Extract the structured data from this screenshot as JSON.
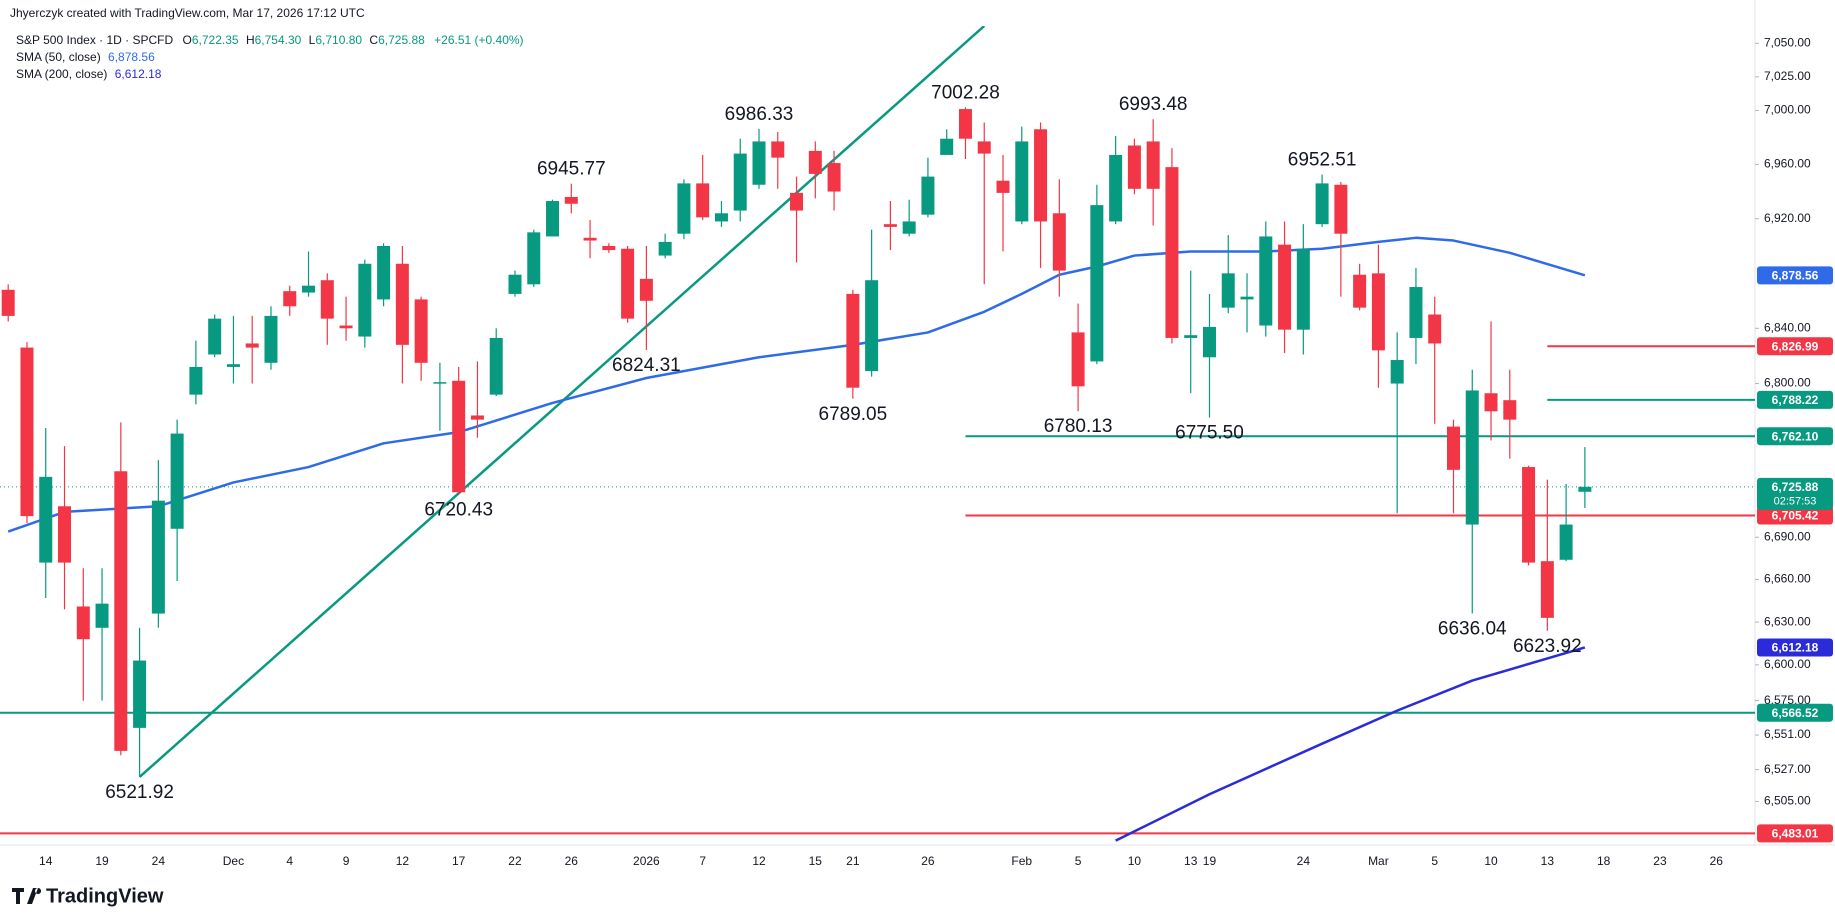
{
  "chart_data": {
    "type": "candlestick",
    "header": "Jhyerczyk created with TradingView.com, Mar 17, 2026 17:12 UTC",
    "legend": {
      "symbol": "S&P 500 Index · 1D · SPCFD",
      "items": [
        {
          "key": "O",
          "value": "6,722.35"
        },
        {
          "key": "H",
          "value": "6,754.30"
        },
        {
          "key": "L",
          "value": "6,710.80"
        },
        {
          "key": "C",
          "value": "6,725.88"
        }
      ],
      "change": "+26.51 (+0.40%)"
    },
    "logo": "TradingView",
    "categories": [
      null,
      null,
      "14",
      null,
      null,
      "19",
      null,
      null,
      "24",
      null,
      null,
      null,
      "Dec",
      null,
      null,
      "4",
      null,
      null,
      "9",
      null,
      null,
      "12",
      null,
      null,
      "17",
      null,
      null,
      "22",
      null,
      null,
      "26",
      null,
      null,
      null,
      "2026",
      null,
      null,
      "7",
      null,
      null,
      "12",
      null,
      null,
      "15",
      null,
      "21",
      null,
      null,
      null,
      "26",
      null,
      null,
      null,
      null,
      "Feb",
      null,
      null,
      "5",
      null,
      null,
      "10",
      null,
      null,
      "13",
      "19",
      null,
      null,
      null,
      null,
      "24",
      null,
      null,
      null,
      "Mar",
      null,
      null,
      "5",
      null,
      null,
      "10",
      null,
      null,
      "13",
      null,
      null,
      "18",
      null,
      null,
      "23",
      null,
      null,
      "26"
    ],
    "open": [
      6868,
      6826,
      6672,
      6712,
      6641,
      6626,
      6737,
      6556,
      6636,
      6696,
      6792,
      6821,
      6812,
      6829,
      6815,
      6867,
      6866,
      6875,
      6842,
      6834,
      6861,
      6887,
      6861,
      6800,
      6802,
      6777,
      6792,
      6865,
      6872,
      6907,
      6936,
      6906,
      6900,
      6898,
      6876,
      6893,
      6909,
      6946,
      6918,
      6926,
      6945,
      6977,
      6939,
      6970,
      6961,
      6865,
      6809,
      6916,
      6909,
      6923,
      6967,
      7001,
      6977,
      6948,
      6918,
      6986,
      6924,
      6837,
      6816,
      6918,
      6974,
      6977,
      6958,
      6833,
      6819,
      6855,
      6861,
      6842,
      6901,
      6839,
      6916,
      6945,
      6879,
      6880,
      6800,
      6833,
      6850,
      6769,
      6699,
      6793,
      6788,
      6740,
      6673,
      6674,
      6722.35,
      null,
      null,
      null,
      null,
      null,
      null,
      null
    ],
    "high": [
      6872,
      6830,
      6768,
      6755,
      6668,
      6668,
      6772,
      6626,
      6745,
      6774,
      6831,
      6850,
      6849,
      6849,
      6856,
      6871,
      6896,
      6880,
      6863,
      6890,
      6902,
      6900,
      6863,
      6815,
      6812,
      6816,
      6840,
      6882,
      6912,
      6934,
      6945.77,
      6919,
      6902,
      6900,
      6900,
      6909,
      6949,
      6967,
      6933,
      6979,
      6986.33,
      6984,
      6951,
      6977,
      6970,
      6868,
      6912,
      6933,
      6934,
      6965,
      6986,
      7002.28,
      6991,
      6967,
      6988,
      6991,
      6949,
      6858,
      6945,
      6981,
      6979,
      6993.48,
      6972,
      6882,
      6865,
      6908,
      6880,
      6918,
      6918,
      6916,
      6952.51,
      6947,
      6887,
      6901,
      6837,
      6884,
      6863,
      6774,
      6810,
      6845,
      6810,
      6741,
      6731,
      6728,
      6754.3,
      null,
      null,
      null,
      null,
      null,
      null,
      null
    ],
    "low": [
      6845,
      6700,
      6647,
      6639,
      6575,
      6575,
      6537,
      6521.92,
      6626,
      6659,
      6785,
      6819,
      6800,
      6800,
      6810,
      6849,
      6863,
      6828,
      6831,
      6826,
      6856,
      6800,
      6802,
      6766,
      6720.43,
      6761,
      6791,
      6863,
      6870,
      6907,
      6924,
      6891,
      6895,
      6844,
      6824.31,
      6891,
      6905,
      6919,
      6914,
      6918,
      6942,
      6942,
      6888,
      6935,
      6926,
      6789.05,
      6805,
      6897,
      6907,
      6921,
      6967,
      6964,
      6872,
      6896,
      6916,
      6884,
      6863,
      6780.13,
      6814,
      6916,
      6938,
      6915,
      6829,
      6793,
      6775.5,
      6851,
      6837,
      6834,
      6822,
      6821,
      6914,
      6863,
      6853,
      6797,
      6707,
      6814,
      6771,
      6707,
      6636.04,
      6759,
      6746,
      6670,
      6623.92,
      6673,
      6710.8,
      null,
      null,
      null,
      null,
      null,
      null,
      null
    ],
    "close": [
      6849,
      6705,
      6733,
      6672,
      6618,
      6643,
      6540,
      6603,
      6716,
      6764,
      6812,
      6847,
      6814,
      6826,
      6849,
      6856,
      6871,
      6847,
      6840,
      6887,
      6900,
      6828,
      6815,
      6801,
      6722,
      6774,
      6833,
      6879,
      6910,
      6933,
      6931,
      6904,
      6897,
      6847,
      6860,
      6903,
      6946,
      6921,
      6924,
      6968,
      6977,
      6965,
      6926,
      6953,
      6940,
      6797,
      6875,
      6914,
      6918,
      6951,
      6979,
      6979,
      6968,
      6939,
      6977,
      6918,
      6882,
      6798,
      6930,
      6967,
      6942,
      6942,
      6833,
      6835,
      6841,
      6880,
      6863,
      6907,
      6839,
      6898,
      6946,
      6909,
      6855,
      6824,
      6817,
      6870,
      6829,
      6738,
      6795,
      6780,
      6774,
      6672,
      6633,
      6699,
      6725.88,
      null,
      null,
      null,
      null,
      null,
      null,
      null
    ],
    "up_color": "#089981",
    "down_color": "#f23645",
    "log_scale": true,
    "grid": false,
    "ylim": [
      6475,
      7063
    ],
    "yticks": [
      {
        "value": 6505,
        "label": "6,505.00"
      },
      {
        "value": 6527,
        "label": "6,527.00"
      },
      {
        "value": 6551,
        "label": "6,551.00"
      },
      {
        "value": 6575,
        "label": "6,575.00"
      },
      {
        "value": 6600,
        "label": "6,600.00"
      },
      {
        "value": 6630,
        "label": "6,630.00"
      },
      {
        "value": 6660,
        "label": "6,660.00"
      },
      {
        "value": 6690,
        "label": "6,690.00"
      },
      {
        "value": 6800,
        "label": "6,800.00"
      },
      {
        "value": 6840,
        "label": "6,840.00"
      },
      {
        "value": 6920,
        "label": "6,920.00"
      },
      {
        "value": 6960,
        "label": "6,960.00"
      },
      {
        "value": 7000,
        "label": "7,000.00"
      },
      {
        "value": 7025,
        "label": "7,025.00"
      },
      {
        "value": 7050,
        "label": "7,050.00"
      }
    ],
    "indicators": [
      {
        "name": "SMA (50, close)",
        "value_label": "6,878.56",
        "color": "#2f6be8",
        "x": [
          0,
          3,
          8,
          12,
          16,
          20,
          24,
          29,
          34,
          40,
          45,
          49,
          52,
          54,
          56,
          58,
          60,
          63,
          67,
          70,
          73,
          75,
          77,
          80,
          84
        ],
        "values": [
          6694,
          6708,
          6712,
          6729,
          6740,
          6757,
          6765,
          6786,
          6804,
          6819,
          6828,
          6837,
          6852,
          6865,
          6879,
          6885,
          6893,
          6896,
          6896,
          6898,
          6903,
          6906,
          6904,
          6895,
          6878.56
        ]
      },
      {
        "name": "SMA (200, close)",
        "value_label": "6,612.18",
        "color": "#2b2bd9",
        "x": [
          59,
          64,
          70,
          74,
          78,
          84
        ],
        "values": [
          6478,
          6510,
          6545,
          6568,
          6589,
          6612.18
        ]
      }
    ],
    "trendline": {
      "color": "#089981",
      "x": [
        7,
        52
      ],
      "values": [
        6521.92,
        7063
      ]
    },
    "levels": [
      {
        "value": 6826.99,
        "label": "6,826.99",
        "color": "#f23645",
        "x_start": 82
      },
      {
        "value": 6788.22,
        "label": "6,788.22",
        "color": "#089981",
        "x_start": 82
      },
      {
        "value": 6762.1,
        "label": "6,762.10",
        "color": "#089981",
        "x_start": 51
      },
      {
        "value": 6705.42,
        "label": "6,705.42",
        "color": "#f23645",
        "x_start": 51
      },
      {
        "value": 6566.52,
        "label": "6,566.52",
        "color": "#089981"
      },
      {
        "value": 6483.01,
        "label": "6,483.01",
        "color": "#f23645"
      }
    ],
    "last_price": {
      "value": 6725.88,
      "label": "6,725.88",
      "countdown": "02:57:53",
      "color": "#089981"
    },
    "annotations": [
      {
        "text": "6521.92",
        "x": 7,
        "position": "below"
      },
      {
        "text": "6720.43",
        "x": 24,
        "position": "below"
      },
      {
        "text": "6824.31",
        "x": 34,
        "position": "below"
      },
      {
        "text": "6945.77",
        "x": 30,
        "position": "above"
      },
      {
        "text": "6986.33",
        "x": 40,
        "position": "above"
      },
      {
        "text": "7002.28",
        "x": 51,
        "position": "above"
      },
      {
        "text": "6993.48",
        "x": 61,
        "position": "above"
      },
      {
        "text": "6952.51",
        "x": 70,
        "position": "above"
      },
      {
        "text": "6789.05",
        "x": 45,
        "position": "below"
      },
      {
        "text": "6780.13",
        "x": 57,
        "position": "below"
      },
      {
        "text": "6775.50",
        "x": 64,
        "position": "below"
      },
      {
        "text": "6636.04",
        "x": 78,
        "position": "below"
      },
      {
        "text": "6623.92",
        "x": 82,
        "position": "below"
      }
    ]
  }
}
